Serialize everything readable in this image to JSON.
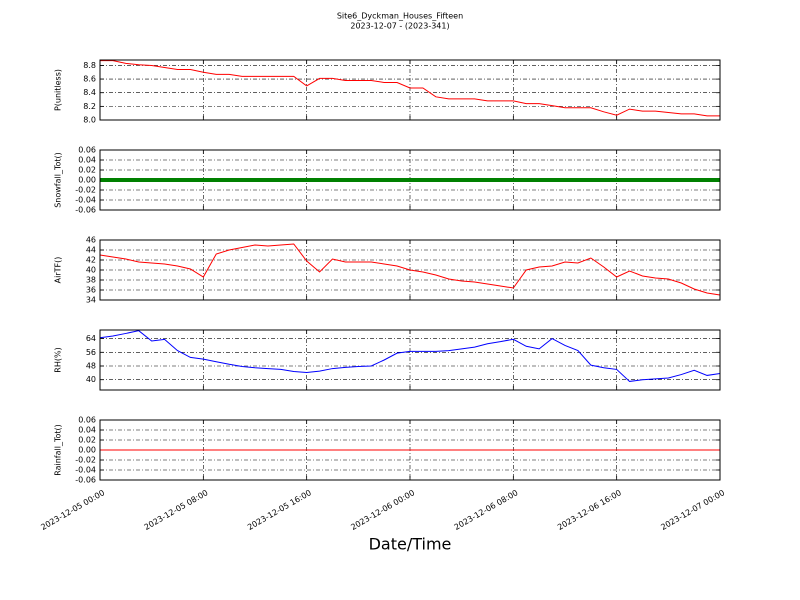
{
  "figure": {
    "title": "Site6_Dyckman_Houses_Fifteen",
    "subtitle": "2023-12-07 - (2023-341)",
    "xlabel": "Date/Time",
    "xlim": [
      "2023-12-05 00:00",
      "2023-12-07 00:00"
    ],
    "xticks": [
      "2023-12-05 00:00",
      "2023-12-05 08:00",
      "2023-12-05 16:00",
      "2023-12-06 00:00",
      "2023-12-06 08:00",
      "2023-12-06 16:00",
      "2023-12-07 00:00"
    ],
    "x": [
      "2023-12-05 00:00",
      "2023-12-05 01:00",
      "2023-12-05 02:00",
      "2023-12-05 03:00",
      "2023-12-05 04:00",
      "2023-12-05 05:00",
      "2023-12-05 06:00",
      "2023-12-05 07:00",
      "2023-12-05 08:00",
      "2023-12-05 09:00",
      "2023-12-05 10:00",
      "2023-12-05 11:00",
      "2023-12-05 12:00",
      "2023-12-05 13:00",
      "2023-12-05 14:00",
      "2023-12-05 15:00",
      "2023-12-05 16:00",
      "2023-12-05 17:00",
      "2023-12-05 18:00",
      "2023-12-05 19:00",
      "2023-12-05 20:00",
      "2023-12-05 21:00",
      "2023-12-05 22:00",
      "2023-12-05 23:00",
      "2023-12-06 00:00",
      "2023-12-06 01:00",
      "2023-12-06 02:00",
      "2023-12-06 03:00",
      "2023-12-06 04:00",
      "2023-12-06 05:00",
      "2023-12-06 06:00",
      "2023-12-06 07:00",
      "2023-12-06 08:00",
      "2023-12-06 09:00",
      "2023-12-06 10:00",
      "2023-12-06 11:00",
      "2023-12-06 12:00",
      "2023-12-06 13:00",
      "2023-12-06 14:00",
      "2023-12-06 15:00",
      "2023-12-06 16:00",
      "2023-12-06 17:00",
      "2023-12-06 18:00",
      "2023-12-06 19:00",
      "2023-12-06 20:00",
      "2023-12-06 21:00",
      "2023-12-06 22:00",
      "2023-12-06 23:00",
      "2023-12-07 00:00"
    ]
  },
  "chart_data": [
    {
      "type": "line",
      "ylabel": "P(unitless)",
      "ylim": [
        8.0,
        8.88
      ],
      "yticks": [
        {
          "value": 8,
          "label": "8.0"
        },
        8.2,
        8.4,
        8.6,
        8.8
      ],
      "grid": true,
      "series": [
        {
          "color": "#ff0000",
          "width": 1,
          "values": [
            8.87,
            8.87,
            8.83,
            8.81,
            8.8,
            8.77,
            8.74,
            8.74,
            8.7,
            8.67,
            8.67,
            8.64,
            8.64,
            8.64,
            8.64,
            8.64,
            8.5,
            8.61,
            8.61,
            8.58,
            8.58,
            8.58,
            8.55,
            8.55,
            8.47,
            8.47,
            8.34,
            8.31,
            8.31,
            8.31,
            8.28,
            8.28,
            8.28,
            8.24,
            8.24,
            8.21,
            8.18,
            8.18,
            8.18,
            8.12,
            8.07,
            8.16,
            8.13,
            8.13,
            8.11,
            8.09,
            8.09,
            8.06,
            8.06
          ]
        }
      ]
    },
    {
      "type": "line",
      "ylabel": "Snowfall_Tot()",
      "ylim": [
        -0.06,
        0.06
      ],
      "yticks": [
        -0.06,
        -0.04,
        -0.02,
        {
          "value": 0,
          "label": "0.00"
        },
        0.02,
        0.04,
        0.06
      ],
      "grid": true,
      "series": [
        {
          "color": "#008000",
          "width": 4,
          "values": [
            0,
            0,
            0,
            0,
            0,
            0,
            0,
            0,
            0,
            0,
            0,
            0,
            0,
            0,
            0,
            0,
            0,
            0,
            0,
            0,
            0,
            0,
            0,
            0,
            0,
            0,
            0,
            0,
            0,
            0,
            0,
            0,
            0,
            0,
            0,
            0,
            0,
            0,
            0,
            0,
            0,
            0,
            0,
            0,
            0,
            0,
            0,
            0,
            0
          ]
        }
      ]
    },
    {
      "type": "line",
      "ylabel": "AirTF()",
      "ylim": [
        34,
        46
      ],
      "yticks": [
        34,
        36,
        38,
        40,
        42,
        44,
        46
      ],
      "grid": true,
      "series": [
        {
          "color": "#ff0000",
          "width": 1,
          "values": [
            43,
            42.6,
            42.2,
            41.6,
            41.4,
            41.2,
            40.8,
            40.2,
            38.6,
            43.2,
            44,
            44.5,
            45,
            44.8,
            45,
            45.2,
            41.8,
            39.6,
            42.2,
            41.6,
            41.6,
            41.6,
            41.2,
            40.8,
            40,
            39.6,
            39,
            38.2,
            37.8,
            37.6,
            37.2,
            36.8,
            36.4,
            40,
            40.6,
            40.8,
            41.6,
            41.4,
            42.4,
            40.6,
            38.6,
            39.8,
            38.8,
            38.4,
            38.2,
            37.4,
            36.2,
            35.4,
            35
          ]
        }
      ]
    },
    {
      "type": "line",
      "ylabel": "RH(%)",
      "ylim": [
        34,
        69
      ],
      "yticks": [
        40,
        48,
        56,
        64
      ],
      "grid": true,
      "series": [
        {
          "color": "#0000ff",
          "width": 1,
          "values": [
            64.5,
            65.5,
            67,
            68.6,
            62.6,
            63.5,
            57,
            53,
            52,
            50.5,
            49,
            47.7,
            47,
            46.5,
            46,
            44.8,
            44.2,
            45,
            46.5,
            47.2,
            47.7,
            48,
            51.5,
            55.5,
            56.5,
            56.5,
            56.5,
            57,
            58,
            59,
            61,
            62.2,
            63.6,
            59.5,
            58,
            64,
            60,
            57,
            48.5,
            47,
            46,
            39,
            40,
            40.5,
            41,
            43,
            45.5,
            42.5,
            43.6
          ]
        }
      ]
    },
    {
      "type": "line",
      "ylabel": "Rainfall_Tot()",
      "ylim": [
        -0.06,
        0.06
      ],
      "yticks": [
        -0.06,
        -0.04,
        -0.02,
        {
          "value": 0,
          "label": "0.00"
        },
        0.02,
        0.04,
        0.06
      ],
      "grid": true,
      "series": [
        {
          "color": "#ff0000",
          "width": 1,
          "values": [
            0,
            0,
            0,
            0,
            0,
            0,
            0,
            0,
            0,
            0,
            0,
            0,
            0,
            0,
            0,
            0,
            0,
            0,
            0,
            0,
            0,
            0,
            0,
            0,
            0,
            0,
            0,
            0,
            0,
            0,
            0,
            0,
            0,
            0,
            0,
            0,
            0,
            0,
            0,
            0,
            0,
            0,
            0,
            0,
            0,
            0,
            0,
            0,
            0
          ]
        }
      ]
    }
  ]
}
